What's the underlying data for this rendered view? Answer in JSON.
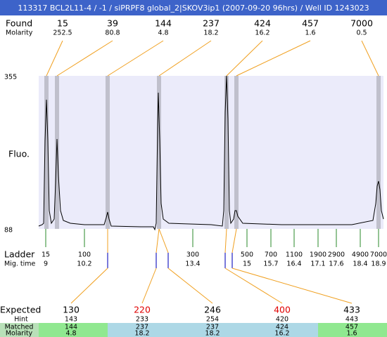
{
  "header": {
    "title": "113317  BCL2L11-4 / -1 / siPRPF8 global_2|SKOV3ip1 (2007-09-20 96hrs) / Well ID 1243023"
  },
  "found": {
    "label": "Found",
    "molarity_label": "Molarity",
    "sizes": [
      15,
      39,
      144,
      237,
      424,
      457,
      7000
    ],
    "molarity": [
      252.5,
      80.8,
      4.8,
      18.2,
      16.2,
      1.6,
      0.5
    ]
  },
  "plot": {
    "y_label": "Fluo.",
    "y_max": 355,
    "y_min": 88
  },
  "ladder": {
    "label": "Ladder",
    "mig_time_label": "Mig. time",
    "sizes": [
      15,
      100,
      300,
      500,
      700,
      1100,
      1900,
      2900,
      4900,
      7000
    ],
    "mig_times": [
      9,
      10.2,
      13.4,
      15,
      15.7,
      16.4,
      17.1,
      17.6,
      18.4,
      18.9
    ]
  },
  "expected": {
    "label": "Expected",
    "hint_label": "Hint",
    "matched_label": "Matched",
    "molarity_label": "Molarity",
    "sizes": [
      130,
      220,
      246,
      400,
      433
    ],
    "colors": [
      "#000000",
      "#e00000",
      "#000000",
      "#e00000",
      "#000000"
    ],
    "hints": [
      143,
      233,
      254,
      420,
      443
    ],
    "matched": [
      144,
      237,
      237,
      424,
      457
    ],
    "molarity": [
      4.8,
      18.2,
      18.2,
      16.2,
      1.6
    ],
    "fills": [
      "#90e890",
      "#add8e6",
      "#add8e6",
      "#add8e6",
      "#90e890"
    ]
  }
}
